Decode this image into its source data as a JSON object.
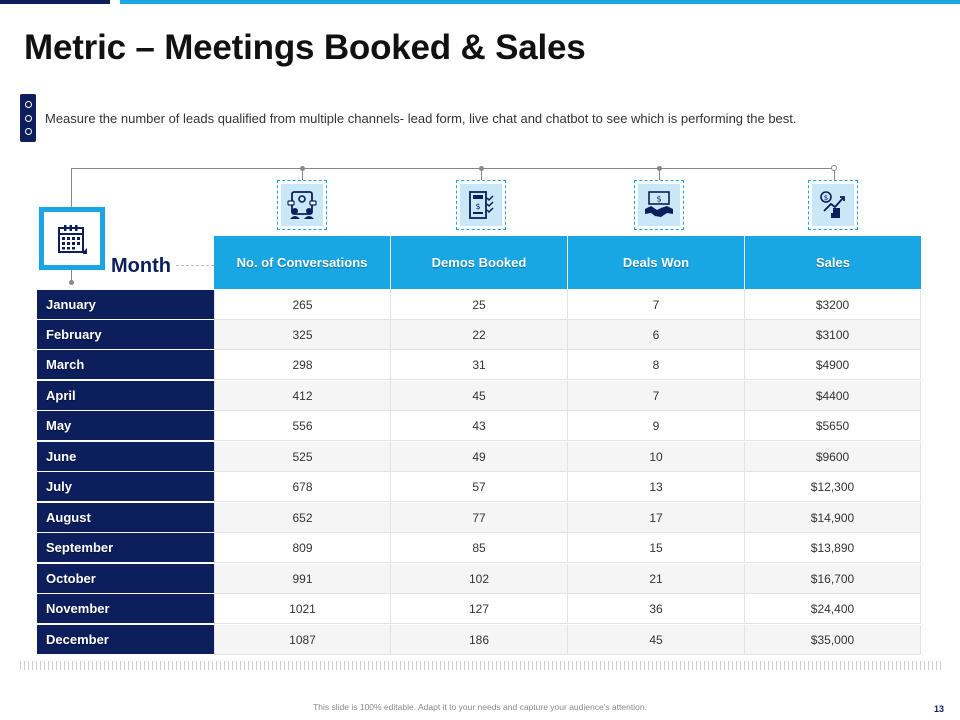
{
  "title": "Metric – Meetings Booked & Sales",
  "subtitle": "Measure the number of leads qualified from multiple channels- lead form, live chat and chatbot to see which is performing the best.",
  "row_header": "Month",
  "icons": [
    "calendar-icon",
    "chat-people-icon",
    "calculator-invoice-icon",
    "handshake-deal-icon",
    "hand-growth-chart-icon"
  ],
  "colors": {
    "accent": "#19a7e4",
    "navy": "#0c1e5c",
    "icon_bg": "#c9e7f6"
  },
  "columns": [
    "No. of Conversations",
    "Demos Booked",
    "Deals Won",
    "Sales"
  ],
  "rows": [
    {
      "month": "January",
      "conversations": "265",
      "demos": "25",
      "deals": "7",
      "sales": "$3200"
    },
    {
      "month": "February",
      "conversations": "325",
      "demos": "22",
      "deals": "6",
      "sales": "$3100"
    },
    {
      "month": "March",
      "conversations": "298",
      "demos": "31",
      "deals": "8",
      "sales": "$4900"
    },
    {
      "month": "April",
      "conversations": "412",
      "demos": "45",
      "deals": "7",
      "sales": "$4400"
    },
    {
      "month": "May",
      "conversations": "556",
      "demos": "43",
      "deals": "9",
      "sales": "$5650"
    },
    {
      "month": "June",
      "conversations": "525",
      "demos": "49",
      "deals": "10",
      "sales": "$9600"
    },
    {
      "month": "July",
      "conversations": "678",
      "demos": "57",
      "deals": "13",
      "sales": "$12,300"
    },
    {
      "month": "August",
      "conversations": "652",
      "demos": "77",
      "deals": "17",
      "sales": "$14,900"
    },
    {
      "month": "September",
      "conversations": "809",
      "demos": "85",
      "deals": "15",
      "sales": "$13,890"
    },
    {
      "month": "October",
      "conversations": "991",
      "demos": "102",
      "deals": "21",
      "sales": "$16,700"
    },
    {
      "month": "November",
      "conversations": "1021",
      "demos": "127",
      "deals": "36",
      "sales": "$24,400"
    },
    {
      "month": "December",
      "conversations": "1087",
      "demos": "186",
      "deals": "45",
      "sales": "$35,000"
    }
  ],
  "footer": "This slide is 100% editable. Adapt it to your needs and capture your audience's attention.",
  "page_number": "13"
}
